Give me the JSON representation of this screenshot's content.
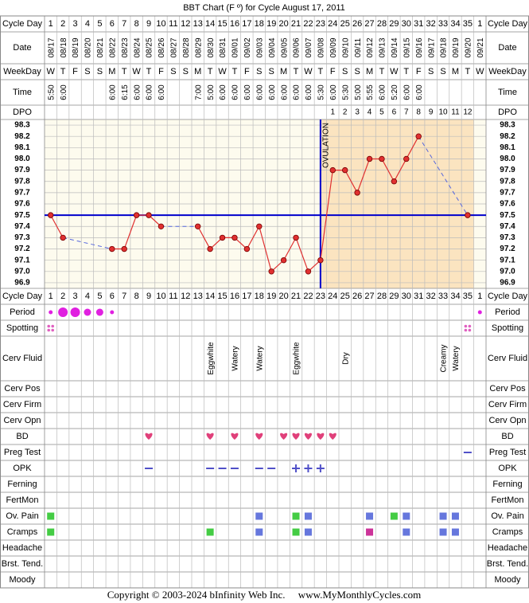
{
  "title": "BBT Chart (F º) for Cycle August 17, 2011",
  "row_labels": {
    "cycle_day": "Cycle Day",
    "date": "Date",
    "weekday": "WeekDay",
    "time": "Time",
    "dpo": "DPO",
    "period": "Period",
    "spotting": "Spotting",
    "cerv_fluid": "Cerv Fluid",
    "cerv_pos": "Cerv Pos",
    "cerv_firm": "Cerv Firm",
    "cerv_opn": "Cerv Opn",
    "bd": "BD",
    "preg_test": "Preg Test",
    "opk": "OPK",
    "ferning": "Ferning",
    "fertmon": "FertMon",
    "ov_pain": "Ov. Pain",
    "cramps": "Cramps",
    "headache": "Headache",
    "brst_tend": "Brst. Tend.",
    "moody": "Moody"
  },
  "dates": [
    "08/17",
    "08/18",
    "08/19",
    "08/20",
    "08/21",
    "08/22",
    "08/23",
    "08/24",
    "08/25",
    "08/26",
    "08/27",
    "08/28",
    "08/29",
    "08/30",
    "08/31",
    "09/01",
    "09/02",
    "09/03",
    "09/04",
    "09/05",
    "09/06",
    "09/07",
    "09/08",
    "09/09",
    "09/10",
    "09/11",
    "09/12",
    "09/13",
    "09/14",
    "09/15",
    "09/16",
    "09/17",
    "09/18",
    "09/19",
    "09/20",
    "09/21"
  ],
  "weekdays": [
    "W",
    "T",
    "F",
    "S",
    "S",
    "M",
    "T",
    "W",
    "T",
    "F",
    "S",
    "S",
    "M",
    "T",
    "W",
    "T",
    "F",
    "S",
    "S",
    "M",
    "T",
    "W",
    "T",
    "F",
    "S",
    "S",
    "M",
    "T",
    "W",
    "T",
    "F",
    "S",
    "S",
    "M",
    "T",
    "W"
  ],
  "times": [
    "5:50",
    "6:00",
    null,
    null,
    null,
    "6:00",
    "6:15",
    "6:00",
    "6:00",
    "6:00",
    null,
    null,
    "7:00",
    "5:00",
    "6:00",
    "6:00",
    "6:00",
    "6:00",
    "6:00",
    "6:00",
    "6:00",
    "6:00",
    "5:30",
    "6:00",
    "5:30",
    "5:00",
    "5:55",
    "6:00",
    "5:20",
    "6:00",
    "6:00",
    null,
    null,
    null,
    null,
    null
  ],
  "dpo": [
    null,
    null,
    null,
    null,
    null,
    null,
    null,
    null,
    null,
    null,
    null,
    null,
    null,
    null,
    null,
    null,
    null,
    null,
    null,
    null,
    null,
    null,
    null,
    1,
    2,
    3,
    4,
    5,
    6,
    7,
    8,
    9,
    10,
    11,
    12,
    null
  ],
  "chart_data": {
    "type": "line",
    "categories": [
      1,
      2,
      3,
      4,
      5,
      6,
      7,
      8,
      9,
      10,
      11,
      12,
      13,
      14,
      15,
      16,
      17,
      18,
      19,
      20,
      21,
      22,
      23,
      24,
      25,
      26,
      27,
      28,
      29,
      30,
      31,
      32,
      33,
      34,
      35,
      1
    ],
    "values": [
      97.5,
      97.3,
      null,
      null,
      null,
      97.2,
      97.2,
      97.5,
      97.5,
      97.4,
      null,
      null,
      97.4,
      97.2,
      97.3,
      97.3,
      97.2,
      97.4,
      97.0,
      97.1,
      97.3,
      97.0,
      97.1,
      97.9,
      97.9,
      97.7,
      98.0,
      98.0,
      97.8,
      98.0,
      98.2,
      null,
      null,
      null,
      97.5,
      null
    ],
    "color": "#e03030",
    "ylim": [
      96.85,
      98.35
    ],
    "yticks": [
      98.3,
      98.2,
      98.1,
      {
        "value": 98,
        "label": "98.0"
      },
      97.9,
      97.8,
      97.7,
      97.6,
      97.5,
      97.4,
      97.3,
      97.2,
      97.1,
      {
        "value": 97,
        "label": "97.0"
      },
      96.9
    ],
    "grid": true,
    "coverline": 97.5,
    "coverline_color": "#0000cc",
    "ovulation_label": "OVULATION"
  },
  "period": [
    1,
    3,
    3,
    2,
    2,
    1,
    null,
    null,
    null,
    null,
    null,
    null,
    null,
    null,
    null,
    null,
    null,
    null,
    null,
    null,
    null,
    null,
    null,
    null,
    null,
    null,
    null,
    null,
    null,
    null,
    null,
    null,
    null,
    null,
    null,
    1
  ],
  "spotting": [
    true,
    null,
    null,
    null,
    null,
    null,
    null,
    null,
    null,
    null,
    null,
    null,
    null,
    null,
    null,
    null,
    null,
    null,
    null,
    null,
    null,
    null,
    null,
    null,
    null,
    null,
    null,
    null,
    null,
    null,
    null,
    null,
    null,
    null,
    true,
    null
  ],
  "cerv_fluid": [
    null,
    null,
    null,
    null,
    null,
    null,
    null,
    null,
    null,
    null,
    null,
    null,
    null,
    "Eggwhite",
    null,
    "Watery",
    null,
    "Watery",
    null,
    null,
    "Eggwhite",
    null,
    null,
    null,
    "Dry",
    null,
    null,
    null,
    null,
    null,
    null,
    null,
    "Creamy",
    "Watery",
    null,
    null
  ],
  "bd": [
    null,
    null,
    null,
    null,
    null,
    null,
    null,
    null,
    true,
    null,
    null,
    null,
    null,
    true,
    null,
    true,
    null,
    true,
    null,
    true,
    true,
    true,
    true,
    true,
    null,
    null,
    null,
    null,
    null,
    null,
    null,
    null,
    null,
    null,
    null,
    null
  ],
  "preg_test": [
    null,
    null,
    null,
    null,
    null,
    null,
    null,
    null,
    null,
    null,
    null,
    null,
    null,
    null,
    null,
    null,
    null,
    null,
    null,
    null,
    null,
    null,
    null,
    null,
    null,
    null,
    null,
    null,
    null,
    null,
    null,
    null,
    null,
    null,
    false,
    null
  ],
  "opk": [
    null,
    null,
    null,
    null,
    null,
    null,
    null,
    null,
    false,
    null,
    null,
    null,
    null,
    false,
    false,
    false,
    null,
    false,
    false,
    null,
    true,
    true,
    true,
    null,
    null,
    null,
    null,
    null,
    null,
    null,
    null,
    null,
    null,
    null,
    null,
    null
  ],
  "ov_pain": [
    "#44cc44",
    null,
    null,
    null,
    null,
    null,
    null,
    null,
    null,
    null,
    null,
    null,
    null,
    null,
    null,
    null,
    null,
    "#6677dd",
    null,
    null,
    "#44cc44",
    "#6677dd",
    null,
    null,
    null,
    null,
    "#6677dd",
    null,
    "#44cc44",
    "#6677dd",
    null,
    null,
    "#6677dd",
    "#6677dd",
    null,
    null
  ],
  "cramps": [
    "#44cc44",
    null,
    null,
    null,
    null,
    null,
    null,
    null,
    null,
    null,
    null,
    null,
    null,
    "#44cc44",
    null,
    null,
    null,
    "#6677dd",
    null,
    null,
    "#44cc44",
    "#6677dd",
    null,
    null,
    null,
    null,
    "#cc3399",
    null,
    null,
    "#6677dd",
    null,
    null,
    "#6677dd",
    "#6677dd",
    null,
    null
  ],
  "copyright": "Copyright © 2003-2024 bInfinity Web Inc.     www.MyMonthlyCycles.com"
}
